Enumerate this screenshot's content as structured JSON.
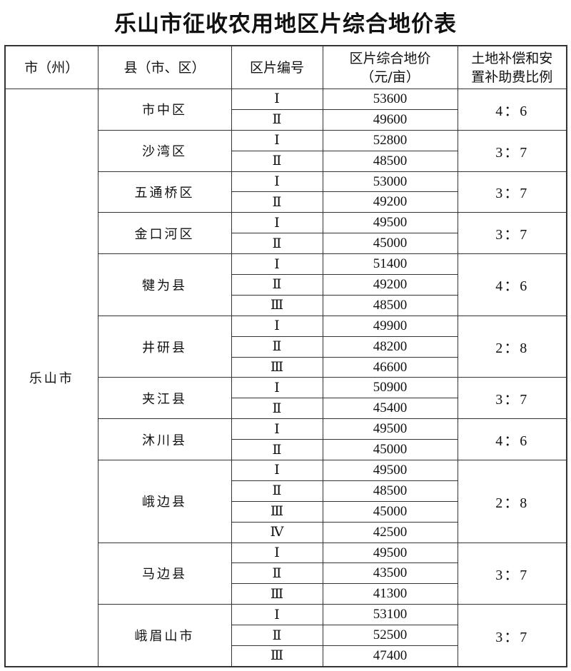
{
  "title": "乐山市征收农用地区片综合地价表",
  "headers": [
    "市（州）",
    "县（市、区）",
    "区片编号",
    "区片综合地价\n（元/亩）",
    "土地补偿和安\n置补助费比例"
  ],
  "city": "乐山市",
  "counties": [
    {
      "name": "市中区",
      "ratio": "4：6",
      "zones": [
        {
          "id": "Ⅰ",
          "price": "53600"
        },
        {
          "id": "Ⅱ",
          "price": "49600"
        }
      ]
    },
    {
      "name": "沙湾区",
      "ratio": "3：7",
      "zones": [
        {
          "id": "Ⅰ",
          "price": "52800"
        },
        {
          "id": "Ⅱ",
          "price": "48500"
        }
      ]
    },
    {
      "name": "五通桥区",
      "ratio": "3：7",
      "zones": [
        {
          "id": "Ⅰ",
          "price": "53000"
        },
        {
          "id": "Ⅱ",
          "price": "49200"
        }
      ]
    },
    {
      "name": "金口河区",
      "ratio": "3：7",
      "zones": [
        {
          "id": "Ⅰ",
          "price": "49500"
        },
        {
          "id": "Ⅱ",
          "price": "45000"
        }
      ]
    },
    {
      "name": "犍为县",
      "ratio": "4：6",
      "zones": [
        {
          "id": "Ⅰ",
          "price": "51400"
        },
        {
          "id": "Ⅱ",
          "price": "49200"
        },
        {
          "id": "Ⅲ",
          "price": "48500"
        }
      ]
    },
    {
      "name": "井研县",
      "ratio": "2：8",
      "zones": [
        {
          "id": "Ⅰ",
          "price": "49900"
        },
        {
          "id": "Ⅱ",
          "price": "48200"
        },
        {
          "id": "Ⅲ",
          "price": "46600"
        }
      ]
    },
    {
      "name": "夹江县",
      "ratio": "3：7",
      "zones": [
        {
          "id": "Ⅰ",
          "price": "50900"
        },
        {
          "id": "Ⅱ",
          "price": "45400"
        }
      ]
    },
    {
      "name": "沐川县",
      "ratio": "4：6",
      "zones": [
        {
          "id": "Ⅰ",
          "price": "49500"
        },
        {
          "id": "Ⅱ",
          "price": "45000"
        }
      ]
    },
    {
      "name": "峨边县",
      "ratio": "2：8",
      "zones": [
        {
          "id": "Ⅰ",
          "price": "49500"
        },
        {
          "id": "Ⅱ",
          "price": "48500"
        },
        {
          "id": "Ⅲ",
          "price": "45000"
        },
        {
          "id": "Ⅳ",
          "price": "42500"
        }
      ]
    },
    {
      "name": "马边县",
      "ratio": "3：7",
      "zones": [
        {
          "id": "Ⅰ",
          "price": "49500"
        },
        {
          "id": "Ⅱ",
          "price": "43500"
        },
        {
          "id": "Ⅲ",
          "price": "41300"
        }
      ]
    },
    {
      "name": "峨眉山市",
      "ratio": "3：7",
      "zones": [
        {
          "id": "Ⅰ",
          "price": "53100"
        },
        {
          "id": "Ⅱ",
          "price": "52500"
        },
        {
          "id": "Ⅲ",
          "price": "47400"
        }
      ]
    }
  ]
}
